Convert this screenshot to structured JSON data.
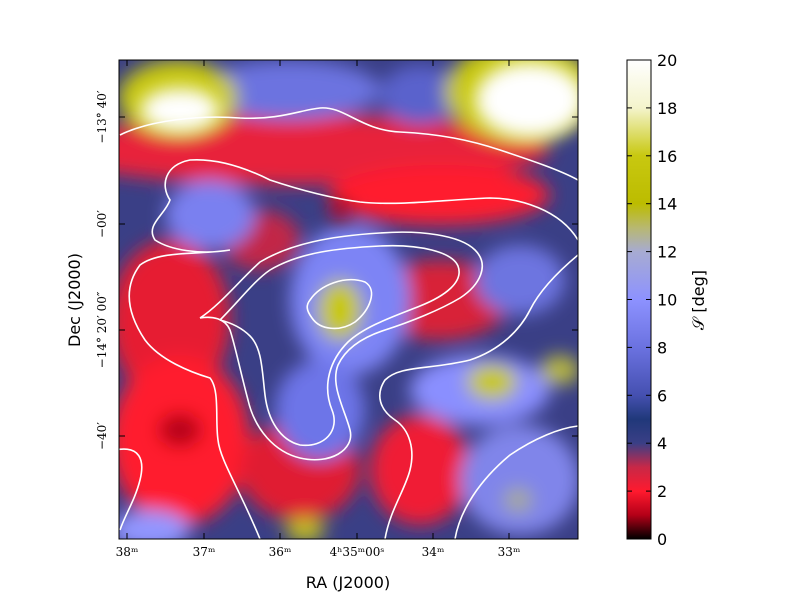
{
  "chart_data": {
    "type": "heatmap",
    "title": "",
    "xlabel": "RA (J2000)",
    "ylabel": "Dec (J2000)",
    "colorbar": {
      "label": "𝒮 [deg]",
      "min": 0,
      "max": 20,
      "ticks": [
        "0",
        "2",
        "4",
        "6",
        "8",
        "10",
        "12",
        "14",
        "16",
        "18",
        "20"
      ],
      "stops": [
        {
          "value": 0,
          "color": "#000000"
        },
        {
          "value": 1,
          "color": "#b40018"
        },
        {
          "value": 2,
          "color": "#ff1a2e"
        },
        {
          "value": 3,
          "color": "#c82847"
        },
        {
          "value": 4,
          "color": "#3a3f86"
        },
        {
          "value": 5,
          "color": "#20387a"
        },
        {
          "value": 6,
          "color": "#4550b0"
        },
        {
          "value": 8,
          "color": "#6b72e0"
        },
        {
          "value": 10,
          "color": "#8d92ff"
        },
        {
          "value": 12,
          "color": "#a7abd2"
        },
        {
          "value": 13,
          "color": "#b8b870"
        },
        {
          "value": 14,
          "color": "#bcbc00"
        },
        {
          "value": 16,
          "color": "#c8c810"
        },
        {
          "value": 18,
          "color": "#f4f4cc"
        },
        {
          "value": 20,
          "color": "#ffffff"
        }
      ]
    },
    "x_ticks": [
      {
        "label": "38ᵐ"
      },
      {
        "label": "37ᵐ"
      },
      {
        "label": "36ᵐ"
      },
      {
        "label": "4ʰ35ᵐ00ˢ"
      },
      {
        "label": "34ᵐ"
      },
      {
        "label": "33ᵐ"
      }
    ],
    "y_ticks": [
      {
        "label": "−13° 40′"
      },
      {
        "label": "−00′"
      },
      {
        "label": "−14° 20′ 00″"
      },
      {
        "label": "−40′"
      }
    ],
    "contour_color": "#ffffff",
    "grid": false,
    "legend": "none"
  }
}
